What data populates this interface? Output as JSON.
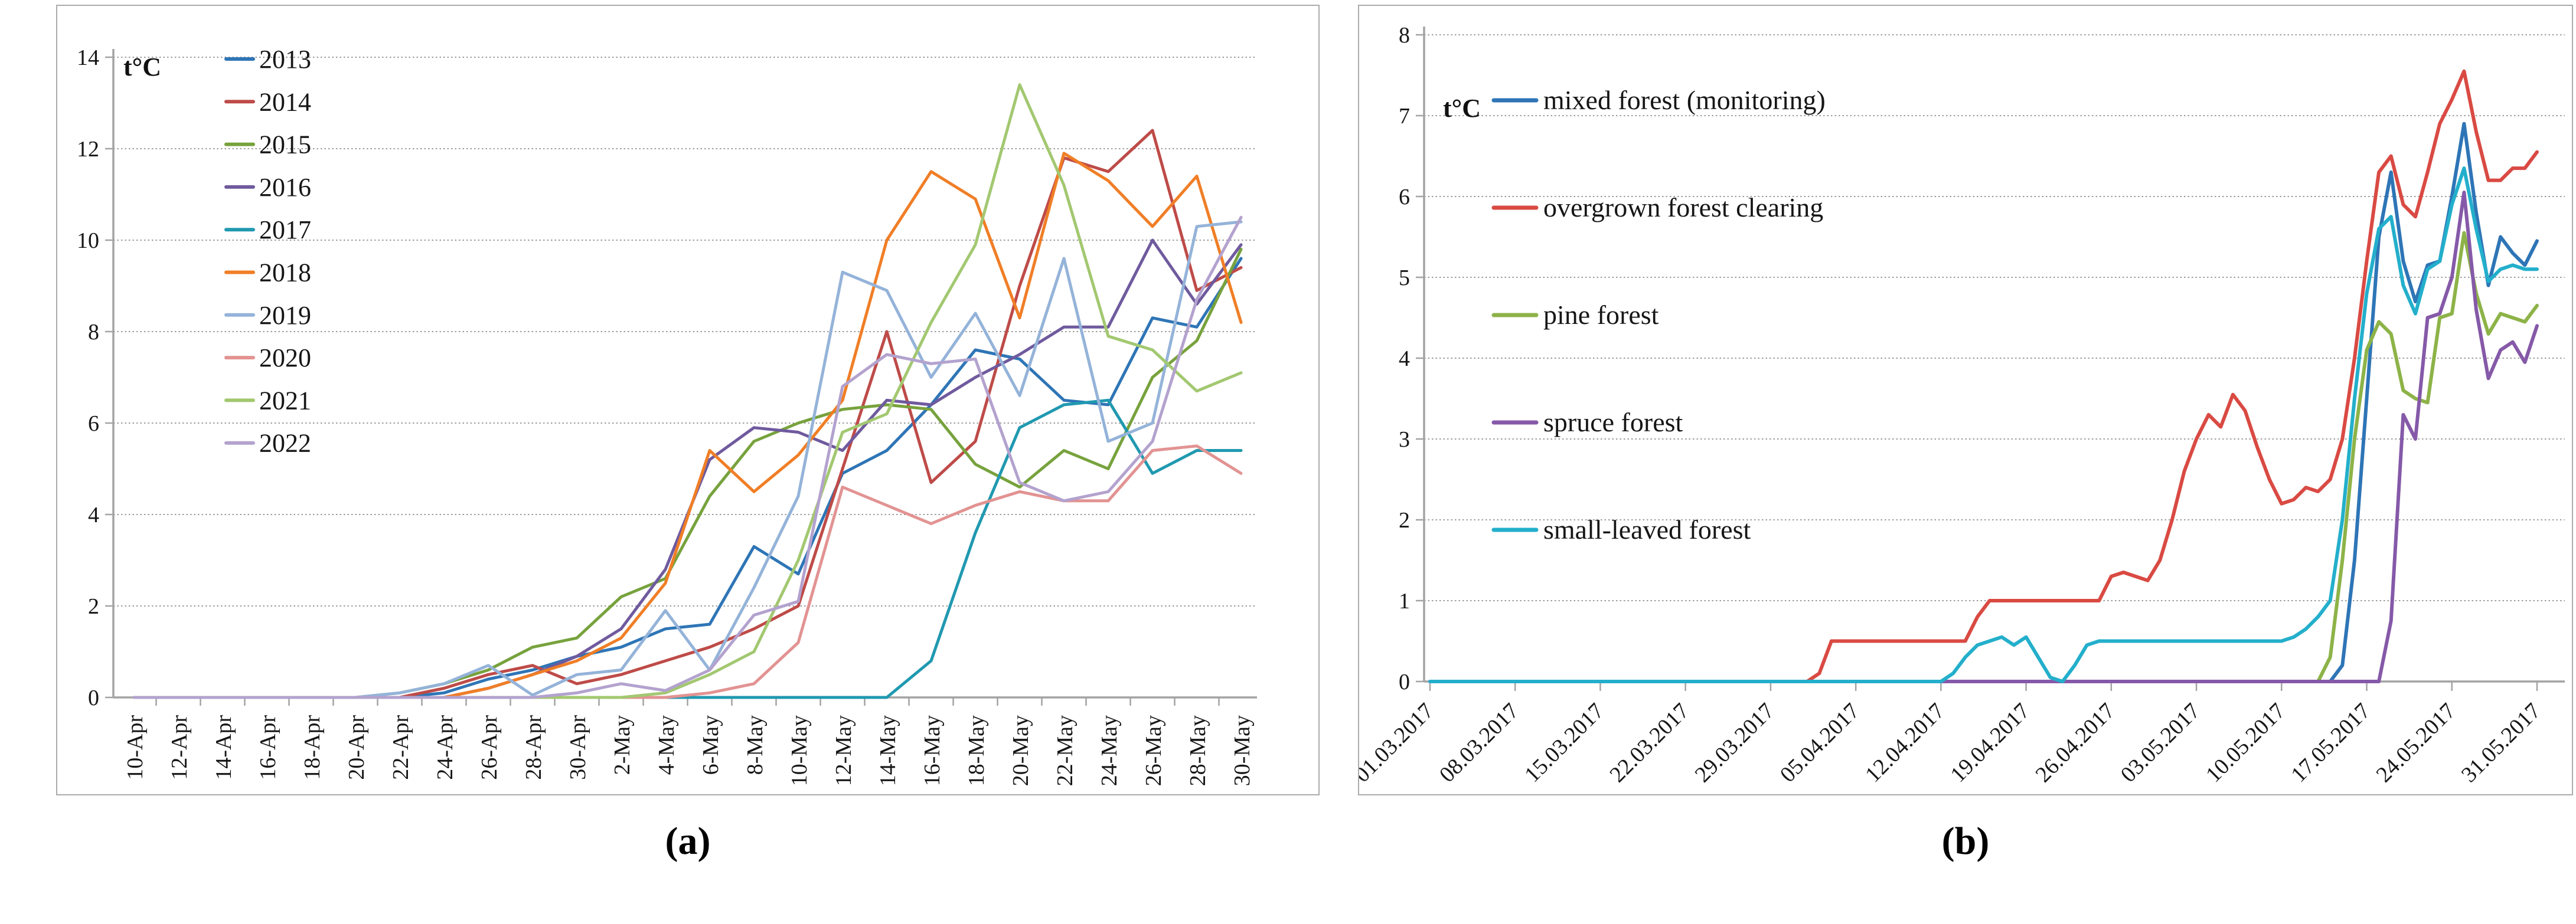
{
  "figure": {
    "panel_a": {
      "caption": "(a)",
      "axis_label": "t°C"
    },
    "panel_b": {
      "caption": "(b)",
      "axis_label": "t°C"
    }
  },
  "chart_data": [
    {
      "id": "a",
      "type": "line",
      "title": "",
      "ylabel": "t°C",
      "ylim": [
        0,
        14
      ],
      "yticks": [
        0,
        2,
        4,
        6,
        8,
        10,
        12,
        14
      ],
      "grid": "horizontal-dotted",
      "legend_position": "top-left-inside",
      "x_label_rotation": -90,
      "categories": [
        "10-Apr",
        "12-Apr",
        "14-Apr",
        "16-Apr",
        "18-Apr",
        "20-Apr",
        "22-Apr",
        "24-Apr",
        "26-Apr",
        "28-Apr",
        "30-Apr",
        "2-May",
        "4-May",
        "6-May",
        "8-May",
        "10-May",
        "12-May",
        "14-May",
        "16-May",
        "18-May",
        "20-May",
        "22-May",
        "24-May",
        "26-May",
        "28-May",
        "30-May"
      ],
      "series": [
        {
          "name": "2013",
          "color": "#2E75B6",
          "values": [
            0,
            0,
            0,
            0,
            0,
            0,
            0,
            0.1,
            0.4,
            0.6,
            0.9,
            1.1,
            1.5,
            1.6,
            3.3,
            2.7,
            4.9,
            5.4,
            6.4,
            7.6,
            7.4,
            6.5,
            6.4,
            8.3,
            8.1,
            9.6
          ]
        },
        {
          "name": "2014",
          "color": "#BE4B48",
          "values": [
            0,
            0,
            0,
            0,
            0,
            0,
            0,
            0.2,
            0.5,
            0.7,
            0.3,
            0.5,
            0.8,
            1.1,
            1.5,
            2,
            5,
            8,
            4.7,
            5.6,
            9,
            11.8,
            11.5,
            12.4,
            8.9,
            9.4
          ]
        },
        {
          "name": "2015",
          "color": "#77A23D",
          "values": [
            0,
            0,
            0,
            0,
            0,
            0,
            0.1,
            0.3,
            0.6,
            1.1,
            1.3,
            2.2,
            2.6,
            4.4,
            5.6,
            6,
            6.3,
            6.4,
            6.3,
            5.1,
            4.6,
            5.4,
            5,
            7,
            7.8,
            9.8
          ]
        },
        {
          "name": "2016",
          "color": "#6F5A9E",
          "values": [
            0,
            0,
            0,
            0,
            0,
            0,
            0,
            0,
            0.2,
            0.5,
            0.9,
            1.5,
            2.8,
            5.2,
            5.9,
            5.8,
            5.4,
            6.5,
            6.4,
            7,
            7.5,
            8.1,
            8.1,
            10,
            8.6,
            9.9
          ]
        },
        {
          "name": "2017",
          "color": "#2099B0",
          "values": [
            0,
            0,
            0,
            0,
            0,
            0,
            0,
            0,
            0,
            0,
            0,
            0,
            0,
            0,
            0,
            0,
            0,
            0,
            0.8,
            3.6,
            5.9,
            6.4,
            6.5,
            4.9,
            5.4,
            5.4
          ]
        },
        {
          "name": "2018",
          "color": "#F07E26",
          "values": [
            0,
            0,
            0,
            0,
            0,
            0,
            0,
            0,
            0.2,
            0.5,
            0.8,
            1.3,
            2.5,
            5.4,
            4.5,
            5.3,
            6.5,
            10,
            11.5,
            10.9,
            8.3,
            11.9,
            11.3,
            10.3,
            11.4,
            8.2
          ]
        },
        {
          "name": "2019",
          "color": "#94B3D9",
          "values": [
            0,
            0,
            0,
            0,
            0,
            0,
            0.1,
            0.3,
            0.7,
            0.05,
            0.5,
            0.6,
            1.9,
            0.6,
            2.4,
            4.4,
            9.3,
            8.9,
            7,
            8.4,
            6.6,
            9.6,
            5.6,
            6,
            10.3,
            10.4
          ]
        },
        {
          "name": "2020",
          "color": "#E29392",
          "values": [
            0,
            0,
            0,
            0,
            0,
            0,
            0,
            0,
            0,
            0,
            0,
            0,
            0,
            0.1,
            0.3,
            1.2,
            4.6,
            4.2,
            3.8,
            4.2,
            4.5,
            4.3,
            4.3,
            5.4,
            5.5,
            4.9
          ]
        },
        {
          "name": "2021",
          "color": "#A3C871",
          "values": [
            0,
            0,
            0,
            0,
            0,
            0,
            0,
            0,
            0,
            0,
            0,
            0,
            0.1,
            0.5,
            1,
            3,
            5.8,
            6.2,
            8.2,
            9.9,
            13.4,
            11.2,
            7.9,
            7.6,
            6.7,
            7.1
          ]
        },
        {
          "name": "2022",
          "color": "#B3A2CE",
          "values": [
            0,
            0,
            0,
            0,
            0,
            0,
            0,
            0,
            0,
            0,
            0.1,
            0.3,
            0.15,
            0.6,
            1.8,
            2.1,
            6.8,
            7.5,
            7.3,
            7.4,
            4.7,
            4.3,
            4.5,
            5.6,
            8.7,
            10.5
          ]
        }
      ]
    },
    {
      "id": "b",
      "type": "line",
      "title": "",
      "ylabel": "t°C",
      "ylim": [
        0,
        8
      ],
      "yticks": [
        0,
        1,
        2,
        3,
        4,
        5,
        6,
        7,
        8
      ],
      "grid": "horizontal-dotted",
      "legend_position": "left-inside",
      "x_label_rotation": -45,
      "x_tick_labels": [
        "01.03.2017",
        "08.03.2017",
        "15.03.2017",
        "22.03.2017",
        "29.03.2017",
        "05.04.2017",
        "12.04.2017",
        "19.04.2017",
        "26.04.2017",
        "03.05.2017",
        "10.05.2017",
        "17.05.2017",
        "24.05.2017",
        "31.05.2017"
      ],
      "x_tick_days": [
        0,
        7,
        14,
        21,
        28,
        35,
        42,
        49,
        56,
        63,
        70,
        77,
        84,
        91
      ],
      "x_total_days": 92,
      "series": [
        {
          "name": "mixed forest (monitoring)",
          "color": "#2E75B6",
          "values": [
            0,
            0,
            0,
            0,
            0,
            0,
            0,
            0,
            0,
            0,
            0,
            0,
            0,
            0,
            0,
            0,
            0,
            0,
            0,
            0,
            0,
            0,
            0,
            0,
            0,
            0,
            0,
            0,
            0,
            0,
            0,
            0,
            0,
            0,
            0,
            0,
            0,
            0,
            0,
            0,
            0,
            0,
            0,
            0,
            0,
            0,
            0,
            0,
            0,
            0,
            0,
            0,
            0,
            0,
            0,
            0,
            0,
            0,
            0,
            0,
            0,
            0,
            0,
            0,
            0,
            0,
            0,
            0,
            0,
            0,
            0,
            0,
            0,
            0,
            0,
            0.2,
            1.5,
            3.5,
            5.5,
            6.3,
            5.2,
            4.7,
            5.15,
            5.2,
            6,
            6.9,
            5.8,
            4.9,
            5.5,
            5.3,
            5.15,
            5.45
          ]
        },
        {
          "name": "overgrown forest clearing",
          "color": "#D94A43",
          "values": [
            0,
            0,
            0,
            0,
            0,
            0,
            0,
            0,
            0,
            0,
            0,
            0,
            0,
            0,
            0,
            0,
            0,
            0,
            0,
            0,
            0,
            0,
            0,
            0,
            0,
            0,
            0,
            0,
            0,
            0,
            0,
            0,
            0.1,
            0.5,
            0.5,
            0.5,
            0.5,
            0.5,
            0.5,
            0.5,
            0.5,
            0.5,
            0.5,
            0.5,
            0.5,
            0.8,
            1,
            1,
            1,
            1,
            1,
            1,
            1,
            1,
            1,
            1,
            1.3,
            1.35,
            1.3,
            1.25,
            1.5,
            2,
            2.6,
            3,
            3.3,
            3.15,
            3.55,
            3.35,
            2.9,
            2.5,
            2.2,
            2.25,
            2.4,
            2.35,
            2.5,
            3,
            4,
            5.2,
            6.3,
            6.5,
            5.9,
            5.75,
            6.3,
            6.9,
            7.2,
            7.55,
            6.8,
            6.2,
            6.2,
            6.35,
            6.35,
            6.55
          ]
        },
        {
          "name": "pine forest",
          "color": "#8DB348",
          "values": [
            0,
            0,
            0,
            0,
            0,
            0,
            0,
            0,
            0,
            0,
            0,
            0,
            0,
            0,
            0,
            0,
            0,
            0,
            0,
            0,
            0,
            0,
            0,
            0,
            0,
            0,
            0,
            0,
            0,
            0,
            0,
            0,
            0,
            0,
            0,
            0,
            0,
            0,
            0,
            0,
            0,
            0,
            0,
            0,
            0,
            0,
            0,
            0,
            0,
            0,
            0,
            0,
            0,
            0,
            0,
            0,
            0,
            0,
            0,
            0,
            0,
            0,
            0,
            0,
            0,
            0,
            0,
            0,
            0,
            0,
            0,
            0,
            0,
            0,
            0.3,
            1.5,
            3,
            4.1,
            4.45,
            4.3,
            3.6,
            3.5,
            3.45,
            4.5,
            4.55,
            5.55,
            4.8,
            4.3,
            4.55,
            4.5,
            4.45,
            4.65
          ]
        },
        {
          "name": "spruce forest",
          "color": "#8559A8",
          "values": [
            0,
            0,
            0,
            0,
            0,
            0,
            0,
            0,
            0,
            0,
            0,
            0,
            0,
            0,
            0,
            0,
            0,
            0,
            0,
            0,
            0,
            0,
            0,
            0,
            0,
            0,
            0,
            0,
            0,
            0,
            0,
            0,
            0,
            0,
            0,
            0,
            0,
            0,
            0,
            0,
            0,
            0,
            0,
            0,
            0,
            0,
            0,
            0,
            0,
            0,
            0,
            0,
            0,
            0,
            0,
            0,
            0,
            0,
            0,
            0,
            0,
            0,
            0,
            0,
            0,
            0,
            0,
            0,
            0,
            0,
            0,
            0,
            0,
            0,
            0,
            0,
            0,
            0,
            0,
            0.75,
            3.3,
            3,
            4.5,
            4.55,
            5,
            6.05,
            4.6,
            3.75,
            4.1,
            4.2,
            3.95,
            4.4
          ]
        },
        {
          "name": "small-leaved forest",
          "color": "#23AFCB",
          "values": [
            0,
            0,
            0,
            0,
            0,
            0,
            0,
            0,
            0,
            0,
            0,
            0,
            0,
            0,
            0,
            0,
            0,
            0,
            0,
            0,
            0,
            0,
            0,
            0,
            0,
            0,
            0,
            0,
            0,
            0,
            0,
            0,
            0,
            0,
            0,
            0,
            0,
            0,
            0,
            0,
            0,
            0,
            0,
            0.1,
            0.3,
            0.45,
            0.5,
            0.55,
            0.45,
            0.55,
            0.3,
            0.05,
            0,
            0.2,
            0.45,
            0.5,
            0.5,
            0.5,
            0.5,
            0.5,
            0.5,
            0.5,
            0.5,
            0.5,
            0.5,
            0.5,
            0.5,
            0.5,
            0.5,
            0.5,
            0.5,
            0.55,
            0.65,
            0.8,
            1,
            2,
            3.5,
            4.8,
            5.6,
            5.75,
            4.9,
            4.55,
            5.1,
            5.2,
            5.9,
            6.35,
            5.6,
            4.95,
            5.1,
            5.15,
            5.1,
            5.1
          ]
        }
      ]
    }
  ]
}
